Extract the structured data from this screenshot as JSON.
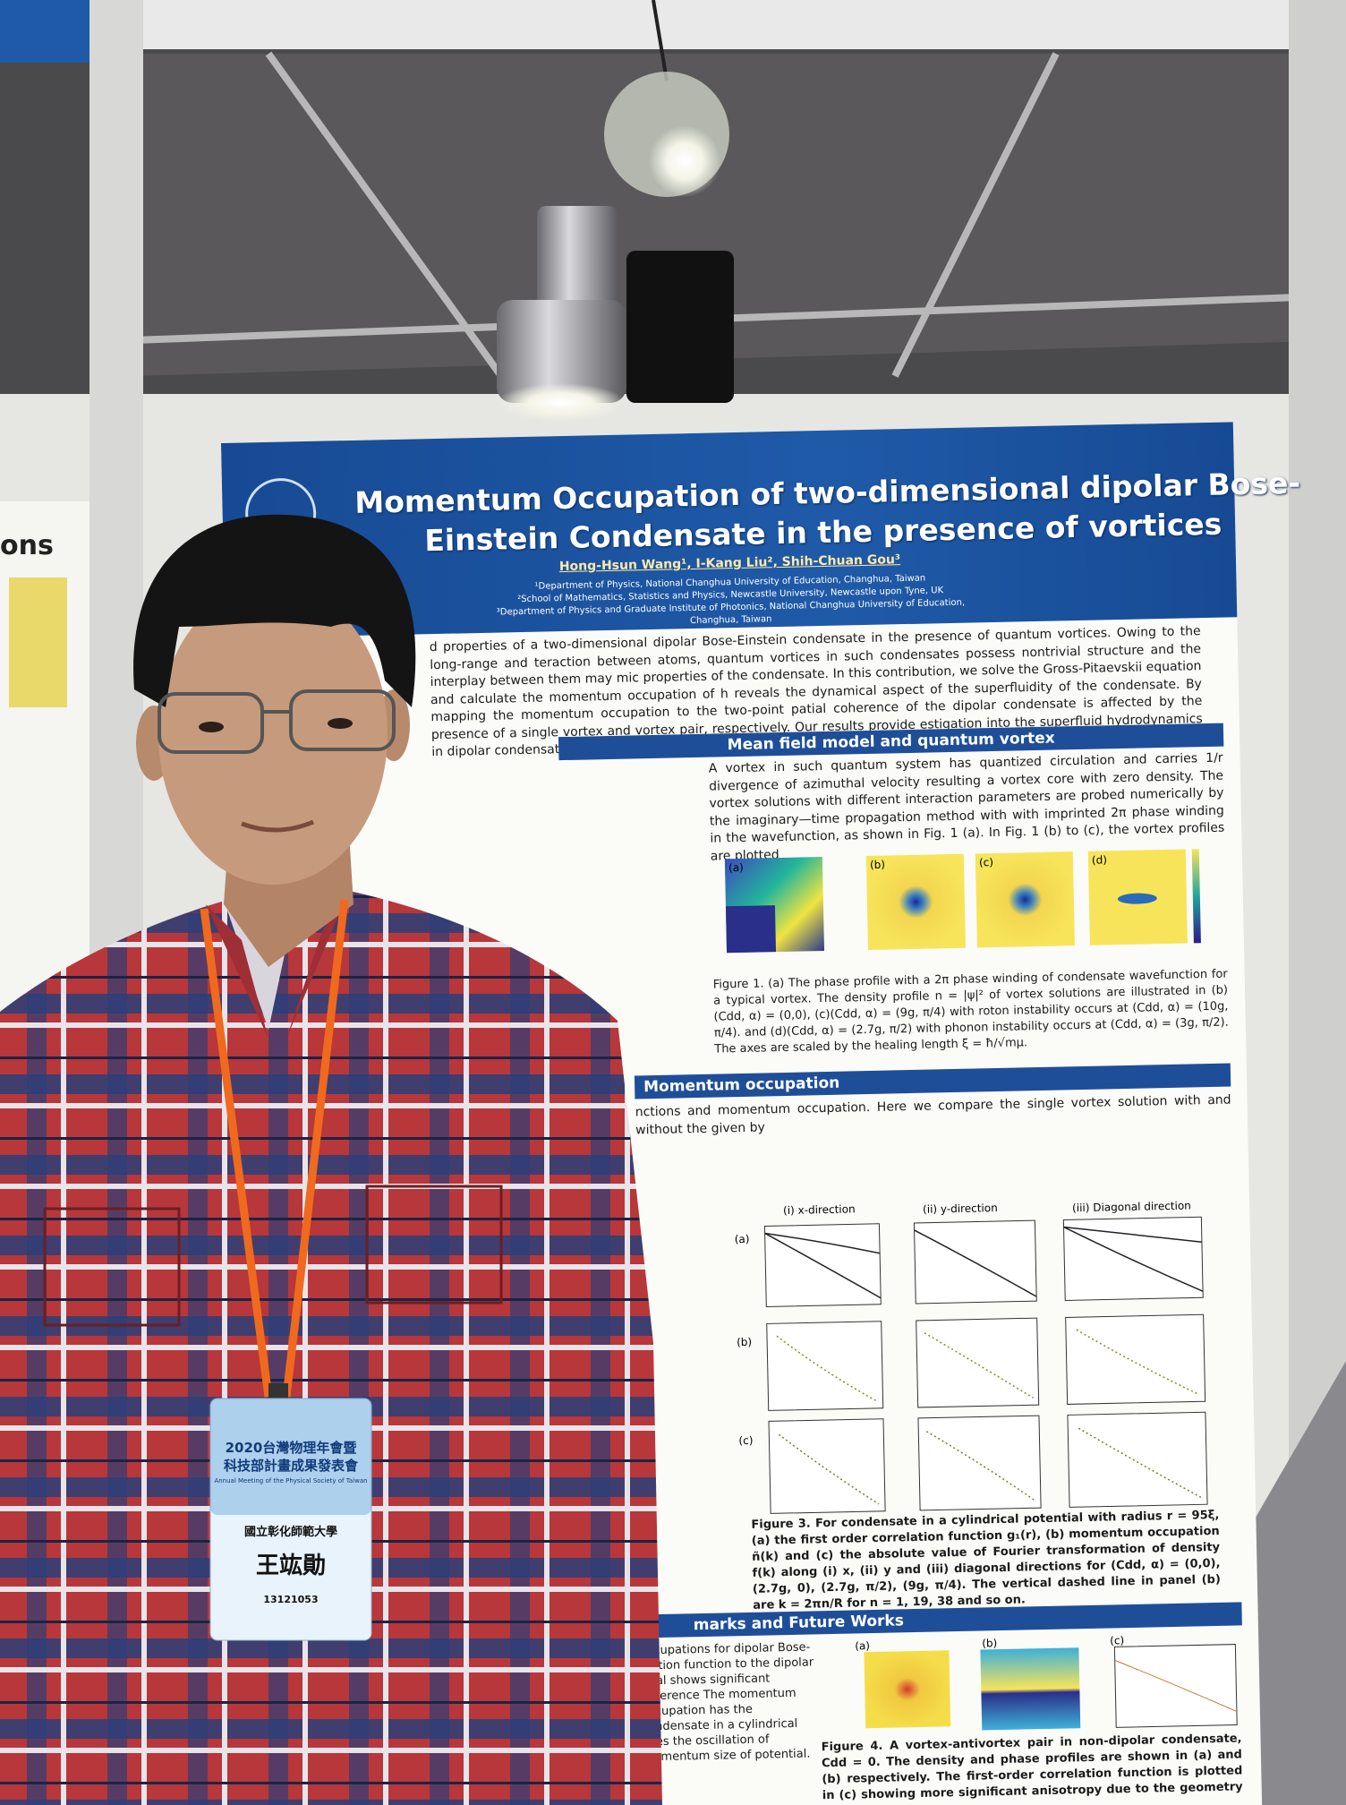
{
  "left_poster": {
    "heading": "ons"
  },
  "poster": {
    "title": [
      "Momentum Occupation of two-dimensional dipolar Bose-",
      "Einstein Condensate in the presence of vortices"
    ],
    "authors": "Hong-Hsun Wang¹, I-Kang Liu², Shih-Chuan Gou³",
    "affiliations": [
      "¹Department of Physics, National Changhua University of Education, Changhua, Taiwan",
      "²School of Mathematics, Statistics and Physics, Newcastle University, Newcastle upon Tyne, UK",
      "³Department of Physics and Graduate Institute of Photonics, National Changhua University of Education,",
      "Changhua, Taiwan"
    ],
    "abstract": "d properties of a two-dimensional dipolar Bose-Einstein condensate in the presence of quantum vortices. Owing to the long-range and teraction between atoms, quantum vortices in such condensates possess nontrivial structure and the interplay between them may mic properties of the condensate. In this contribution, we solve the Gross-Pitaevskii equation and calculate the momentum occupation of h reveals the dynamical aspect of the superfluidity of the condensate. By mapping the momentum occupation to the two-point patial coherence of the dipolar condensate is affected by the presence of a single vortex and vortex pair, respectively. Our results provide estigation into the superfluid hydrodynamics in dipolar condensates.",
    "sections": [
      {
        "heading": "Mean field model and quantum vortex",
        "text": "A vortex in such quantum system has quantized circulation and carries 1/r divergence of azimuthal velocity resulting a vortex core with zero density. The vortex solutions with different interaction parameters are probed numerically by the imaginary—time propagation method with with imprinted 2π phase winding in the wavefunction, as shown in Fig. 1 (a). In Fig. 1 (b) to (c), the vortex profiles are plotted"
      },
      {
        "heading": "Momentum occupation",
        "text": "nctions and momentum occupation. Here we compare the single vortex solution with and without the given by"
      },
      {
        "heading": "marks and Future Works",
        "text": "occupations for dipolar Bose-elation function to the dipolar ntial shows significant difference The momentum occupation has the condensate in a cylindrical uces the oscillation of momentum size of potential."
      }
    ],
    "figure1": {
      "panels": [
        "(a)",
        "(b)",
        "(c)",
        "(d)"
      ],
      "caption": "Figure 1. (a) The phase profile with a 2π phase winding of condensate wavefunction for a typical vortex. The density profile n = |ψ|² of vortex solutions are illustrated in (b) (Cdd, α) = (0,0), (c)(Cdd, α) = (9g, π/4) with roton instability occurs at (Cdd, α) = (10g, π/4). and (d)(Cdd, α) = (2.7g, π/2) with phonon instability occurs at (Cdd, α) = (3g, π/2). The axes are scaled by the healing length ξ = ħ/√mμ."
    },
    "figure3": {
      "columns": [
        "(i) x-direction",
        "(ii) y-direction",
        "(iii) Diagonal direction"
      ],
      "rows": [
        "(a)",
        "(b)",
        "(c)"
      ],
      "caption": "Figure 3. For condensate in a cylindrical potential with radius r = 95ξ, (a) the first order correlation function g₁(r), (b) momentum occupation ñ(k) and (c) the absolute value of Fourier transformation of density f(k) along (i) x, (ii) y and (iii) diagonal directions for (Cdd, α) = (0,0), (2.7g, 0), (2.7g, π/2), (9g, π/4). The vertical dashed line in panel (b) are k = 2πn/R for n = 1, 19, 38 and so on."
    },
    "figure4": {
      "panels": [
        "(a)",
        "(b)",
        "(c)"
      ],
      "caption": "Figure 4. A vortex-antivortex pair in non-dipolar condensate, Cdd = 0. The density and phase profiles are shown in (a) and (b) respectively. The first-order correlation function is plotted in (c) showing more significant anisotropy due to the geometry of the"
    }
  },
  "badge": {
    "event": [
      "2020台灣物理年會暨",
      "科技部計畫成果發表會"
    ],
    "event_en": "Annual Meeting of the Physical Society of Taiwan",
    "affiliation": "國立彰化師範大學",
    "name": "王竑勛",
    "number": "13121053"
  }
}
